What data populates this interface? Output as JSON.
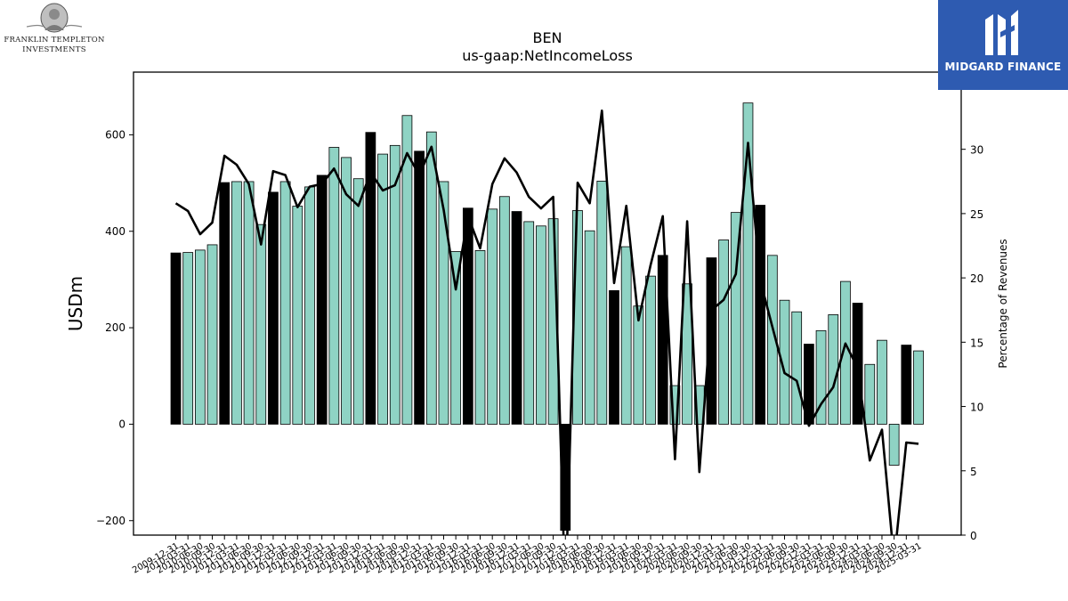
{
  "branding": {
    "franklin": {
      "line1": "FRANKLIN TEMPLETON",
      "line2": "INVESTMENTS"
    },
    "midgard": {
      "name": "MIDGARD FINANCE",
      "bg_color": "#2e5bb1"
    }
  },
  "chart_data": {
    "type": "bar",
    "title": "BEN",
    "subtitle": "us-gaap:NetIncomeLoss",
    "ylabel": "USDm",
    "y2label": "Percentage of Revenues",
    "ylim": [
      -230,
      730
    ],
    "y2lim": [
      0,
      36
    ],
    "yticks": [
      -200,
      0,
      200,
      400,
      600
    ],
    "y2ticks": [
      0,
      5,
      10,
      15,
      20,
      25,
      30,
      35
    ],
    "grid": false,
    "colors": {
      "bar_default": "#8fd3c4",
      "bar_highlight": "#000000",
      "line": "#000000"
    },
    "x": [
      "2009-12-31",
      "2010-03-31",
      "2010-06-30",
      "2010-09-30",
      "2010-12-31",
      "2011-03-31",
      "2011-06-30",
      "2011-09-30",
      "2011-12-31",
      "2012-03-31",
      "2012-06-30",
      "2012-09-30",
      "2012-12-31",
      "2013-03-31",
      "2013-06-30",
      "2013-09-30",
      "2013-12-31",
      "2014-03-31",
      "2014-06-30",
      "2014-09-30",
      "2014-12-31",
      "2015-03-31",
      "2015-06-30",
      "2015-09-30",
      "2015-12-31",
      "2016-03-31",
      "2016-06-30",
      "2016-09-30",
      "2016-12-31",
      "2017-03-31",
      "2017-06-30",
      "2017-09-30",
      "2017-12-31",
      "2018-03-31",
      "2018-06-30",
      "2018-09-30",
      "2018-12-31",
      "2019-03-31",
      "2019-06-30",
      "2019-09-30",
      "2019-12-31",
      "2020-03-31",
      "2020-06-30",
      "2020-09-30",
      "2020-12-31",
      "2021-03-31",
      "2021-06-30",
      "2021-09-30",
      "2021-12-31",
      "2022-03-31",
      "2022-06-30",
      "2022-09-30",
      "2022-12-31",
      "2023-03-31",
      "2023-06-30",
      "2023-09-30",
      "2023-12-31",
      "2024-03-31",
      "2024-06-30",
      "2024-09-30",
      "2024-12-31",
      "2025-03-31"
    ],
    "series": [
      {
        "kind": "bar",
        "axis": "left",
        "values": [
          355,
          356,
          361,
          372,
          501,
          503,
          503,
          414,
          481,
          503,
          452,
          492,
          516,
          574,
          553,
          509,
          605,
          560,
          578,
          640,
          566,
          606,
          503,
          358,
          448,
          360,
          446,
          472,
          441,
          420,
          411,
          426,
          -220,
          443,
          401,
          504,
          277,
          368,
          245,
          307,
          350,
          80,
          291,
          80,
          345,
          382,
          439,
          666,
          454,
          350,
          257,
          233,
          166,
          194,
          227,
          296,
          251,
          124,
          174,
          -85,
          164,
          152
        ],
        "highlight": [
          1,
          0,
          0,
          0,
          1,
          0,
          0,
          0,
          1,
          0,
          0,
          0,
          1,
          0,
          0,
          0,
          1,
          0,
          0,
          0,
          1,
          0,
          0,
          0,
          1,
          0,
          0,
          0,
          1,
          0,
          0,
          0,
          1,
          0,
          0,
          0,
          1,
          0,
          0,
          0,
          1,
          0,
          0,
          0,
          1,
          0,
          0,
          0,
          1,
          0,
          0,
          0,
          1,
          0,
          0,
          0,
          1,
          0,
          0,
          0,
          1,
          0
        ]
      },
      {
        "kind": "line",
        "axis": "right",
        "values": [
          25.8,
          25.2,
          23.4,
          24.3,
          29.5,
          28.8,
          27.3,
          22.6,
          28.3,
          28.0,
          25.5,
          27.1,
          27.3,
          28.5,
          26.5,
          25.6,
          28.2,
          26.8,
          27.2,
          29.7,
          28.0,
          30.2,
          25.3,
          19.1,
          24.8,
          22.3,
          27.3,
          29.3,
          28.2,
          26.3,
          25.4,
          26.3,
          -5.0,
          27.4,
          25.8,
          33.0,
          19.6,
          25.6,
          16.7,
          21.0,
          24.8,
          5.9,
          24.4,
          4.9,
          17.5,
          18.3,
          20.3,
          30.5,
          19.8,
          16.2,
          12.6,
          12.0,
          8.5,
          10.2,
          11.5,
          14.9,
          13.0,
          5.8,
          8.2,
          -2.0,
          7.2,
          7.1
        ]
      }
    ]
  }
}
